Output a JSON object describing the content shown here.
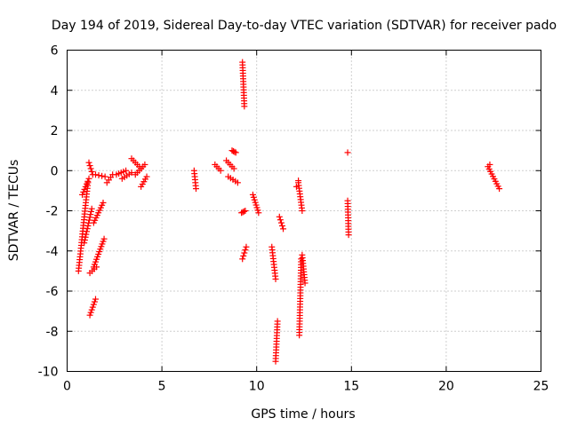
{
  "chart_data": {
    "type": "scatter",
    "title": "Day 194 of 2019, Sidereal Day-to-day VTEC variation (SDTVAR) for receiver pado",
    "xlabel": "GPS time / hours",
    "ylabel": "SDTVAR / TECUs",
    "xlim": [
      0,
      25
    ],
    "ylim": [
      -10,
      6
    ],
    "xticks": [
      0,
      5,
      10,
      15,
      20,
      25
    ],
    "yticks": [
      -10,
      -8,
      -6,
      -4,
      -2,
      0,
      2,
      4,
      6
    ],
    "grid": true,
    "marker": "+",
    "color": "#ff0000",
    "segments": [
      {
        "x": [
          0.6,
          1.1
        ],
        "y": [
          -5.0,
          -0.6
        ]
      },
      {
        "x": [
          0.8,
          1.15
        ],
        "y": [
          -1.2,
          -0.4
        ]
      },
      {
        "x": [
          0.9,
          1.3
        ],
        "y": [
          -3.6,
          -1.9
        ]
      },
      {
        "x": [
          1.15,
          1.35
        ],
        "y": [
          0.4,
          -0.2
        ]
      },
      {
        "x": [
          1.2,
          1.5
        ],
        "y": [
          -7.2,
          -6.4
        ]
      },
      {
        "x": [
          1.2,
          1.55
        ],
        "y": [
          -5.1,
          -4.8
        ]
      },
      {
        "x": [
          1.4,
          1.95
        ],
        "y": [
          -4.8,
          -3.4
        ]
      },
      {
        "x": [
          1.4,
          1.9
        ],
        "y": [
          -2.6,
          -1.6
        ]
      },
      {
        "x": [
          1.5,
          2.0
        ],
        "y": [
          -0.2,
          -0.3
        ]
      },
      {
        "x": [
          2.1,
          2.4
        ],
        "y": [
          -0.6,
          -0.2
        ]
      },
      {
        "x": [
          2.6,
          3.1
        ],
        "y": [
          -0.2,
          0.0
        ]
      },
      {
        "x": [
          2.9,
          3.4
        ],
        "y": [
          -0.4,
          -0.1
        ]
      },
      {
        "x": [
          3.4,
          3.9
        ],
        "y": [
          0.6,
          0.1
        ]
      },
      {
        "x": [
          3.6,
          4.1
        ],
        "y": [
          -0.2,
          0.3
        ]
      },
      {
        "x": [
          3.9,
          4.2
        ],
        "y": [
          -0.8,
          -0.3
        ]
      },
      {
        "x": [
          6.7,
          6.8
        ],
        "y": [
          0.0,
          -0.9
        ]
      },
      {
        "x": [
          7.8,
          8.1
        ],
        "y": [
          0.3,
          0.0
        ]
      },
      {
        "x": [
          8.4,
          8.8
        ],
        "y": [
          0.5,
          0.1
        ]
      },
      {
        "x": [
          8.5,
          9.0
        ],
        "y": [
          -0.3,
          -0.6
        ]
      },
      {
        "x": [
          8.7,
          8.9
        ],
        "y": [
          1.0,
          0.9
        ]
      },
      {
        "x": [
          9.25,
          9.35
        ],
        "y": [
          5.4,
          3.2
        ]
      },
      {
        "x": [
          9.25,
          9.45
        ],
        "y": [
          -4.4,
          -3.8
        ]
      },
      {
        "x": [
          9.2,
          9.4
        ],
        "y": [
          -2.1,
          -2.0
        ]
      },
      {
        "x": [
          9.8,
          10.1
        ],
        "y": [
          -1.2,
          -2.1
        ]
      },
      {
        "x": [
          10.8,
          11.0
        ],
        "y": [
          -3.8,
          -5.4
        ]
      },
      {
        "x": [
          11.0,
          11.1
        ],
        "y": [
          -9.5,
          -7.5
        ]
      },
      {
        "x": [
          11.2,
          11.4
        ],
        "y": [
          -2.3,
          -2.9
        ]
      },
      {
        "x": [
          12.2,
          12.4
        ],
        "y": [
          -0.6,
          -2.0
        ]
      },
      {
        "x": [
          12.25,
          12.35
        ],
        "y": [
          -8.2,
          -4.4
        ]
      },
      {
        "x": [
          12.4,
          12.55
        ],
        "y": [
          -4.2,
          -5.6
        ]
      },
      {
        "x": [
          14.8,
          14.85
        ],
        "y": [
          -1.5,
          -3.2
        ]
      },
      {
        "x": [
          22.2,
          22.8
        ],
        "y": [
          0.2,
          -0.9
        ]
      }
    ],
    "points": [
      {
        "x": 12.2,
        "y": -0.5
      },
      {
        "x": 12.1,
        "y": -0.8
      },
      {
        "x": 14.8,
        "y": 0.9
      },
      {
        "x": 22.3,
        "y": 0.3
      }
    ]
  }
}
